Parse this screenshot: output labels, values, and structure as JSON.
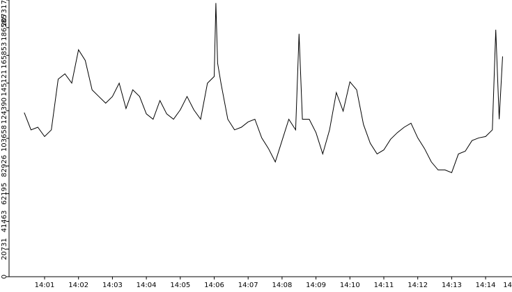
{
  "colors": {
    "background": "#ffffff",
    "line": "#000000",
    "axis": "#000000"
  },
  "chart_data": {
    "type": "line",
    "title": "",
    "xlabel": "",
    "ylabel": "",
    "grid": false,
    "legend": "none",
    "ylim": [
      0,
      207317
    ],
    "yticks": [
      "0",
      "20731",
      "41463",
      "62195",
      "82926",
      "103658",
      "124390",
      "145121",
      "165853",
      "186585",
      "207317"
    ],
    "xlim_minutes": [
      0.4,
      14.5
    ],
    "xticks": [
      "14:01",
      "14:02",
      "14:03",
      "14:04",
      "14:05",
      "14:06",
      "14:07",
      "14:08",
      "14:09",
      "14:10",
      "14:11",
      "14:12",
      "14:13",
      "14:14",
      "14"
    ],
    "series": [
      {
        "color": "#000000",
        "x_minutes": [
          0.4,
          0.6,
          0.8,
          1.0,
          1.2,
          1.4,
          1.6,
          1.8,
          2.0,
          2.2,
          2.4,
          2.6,
          2.8,
          3.0,
          3.2,
          3.4,
          3.6,
          3.8,
          4.0,
          4.2,
          4.4,
          4.6,
          4.8,
          5.0,
          5.2,
          5.4,
          5.6,
          5.8,
          6.0,
          6.05,
          6.1,
          6.2,
          6.4,
          6.6,
          6.8,
          7.0,
          7.2,
          7.4,
          7.6,
          7.8,
          8.0,
          8.2,
          8.4,
          8.5,
          8.6,
          8.8,
          9.0,
          9.2,
          9.4,
          9.6,
          9.8,
          10.0,
          10.2,
          10.4,
          10.6,
          10.8,
          11.0,
          11.2,
          11.4,
          11.6,
          11.8,
          12.0,
          12.2,
          12.4,
          12.6,
          12.8,
          13.0,
          13.2,
          13.4,
          13.6,
          13.8,
          14.0,
          14.2,
          14.3,
          14.4,
          14.5
        ],
        "y": [
          123000,
          110000,
          112000,
          105000,
          110000,
          148000,
          152000,
          145000,
          170000,
          162000,
          140000,
          135000,
          130000,
          135000,
          145000,
          126000,
          140000,
          135000,
          122000,
          118000,
          132000,
          122000,
          118000,
          125000,
          135000,
          125000,
          118000,
          145000,
          150000,
          205000,
          160000,
          145000,
          118000,
          110000,
          112000,
          116000,
          118000,
          104000,
          96000,
          86000,
          102000,
          118000,
          110000,
          182000,
          118000,
          118000,
          108000,
          92000,
          110000,
          138000,
          124000,
          146000,
          140000,
          114000,
          100000,
          92000,
          95000,
          103000,
          108000,
          112000,
          115000,
          104000,
          96000,
          86000,
          80000,
          80000,
          78000,
          92000,
          94000,
          102000,
          104000,
          105000,
          110000,
          185000,
          118000,
          165000
        ]
      }
    ]
  }
}
